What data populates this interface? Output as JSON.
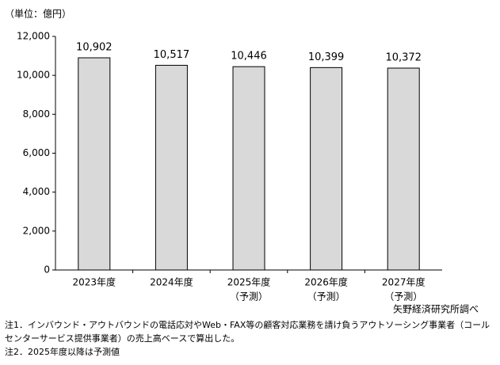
{
  "chart_data": {
    "type": "bar",
    "y_label": "（単位：億円）",
    "categories": [
      [
        "2023年度"
      ],
      [
        "2024年度"
      ],
      [
        "2025年度",
        "（予測）"
      ],
      [
        "2026年度",
        "（予測）"
      ],
      [
        "2027年度",
        "（予測）"
      ]
    ],
    "values": [
      10902,
      10517,
      10446,
      10399,
      10372
    ],
    "value_labels": [
      "10,902",
      "10,517",
      "10,446",
      "10,399",
      "10,372"
    ],
    "color": "#d9d9d9",
    "ylim": [
      0,
      12000
    ],
    "yticks": [
      0,
      {
        "value": 2000,
        "label": "2,000"
      },
      {
        "value": 4000,
        "label": "4,000"
      },
      {
        "value": 6000,
        "label": "6,000"
      },
      {
        "value": 8000,
        "label": "8,000"
      },
      {
        "value": 10000,
        "label": "10,000"
      },
      {
        "value": 12000,
        "label": "12,000"
      }
    ],
    "grid": false,
    "source": "矢野経済研究所調べ",
    "notes": [
      "注1．インバウンド・アウトバウンドの電話応対やWeb・FAX等の顧客対応業務を請け負うアウトソーシング事業者（コールセンターサービス提供事業者）の売上高ベースで算出した。",
      "注2．2025年度以降は予測値"
    ]
  }
}
